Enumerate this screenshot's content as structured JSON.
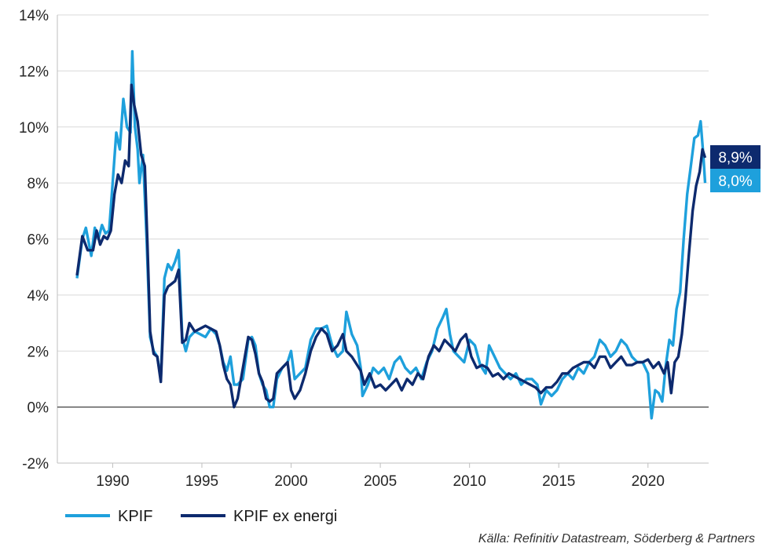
{
  "chart_data": {
    "type": "line",
    "title": "",
    "xlabel": "",
    "ylabel": "",
    "ylim": [
      -2,
      14
    ],
    "xlim": [
      1986.9,
      2023.4
    ],
    "y_ticks": [
      "-2%",
      "0%",
      "2%",
      "4%",
      "6%",
      "8%",
      "10%",
      "12%",
      "14%"
    ],
    "y_tick_values": [
      -2,
      0,
      2,
      4,
      6,
      8,
      10,
      12,
      14
    ],
    "x_ticks": [
      "1990",
      "1995",
      "2000",
      "2005",
      "2010",
      "2015",
      "2020"
    ],
    "x_tick_values": [
      1990,
      1995,
      2000,
      2005,
      2010,
      2015,
      2020
    ],
    "grid": "horizontal",
    "legend_position": "bottom-left",
    "series": [
      {
        "name": "KPIF",
        "color": "#1ea0dc",
        "end_label": "8,0%",
        "end_value": 8.0,
        "points": [
          [
            1988.0,
            4.6
          ],
          [
            1988.3,
            6.0
          ],
          [
            1988.5,
            6.4
          ],
          [
            1988.8,
            5.4
          ],
          [
            1989.0,
            6.4
          ],
          [
            1989.2,
            6.0
          ],
          [
            1989.4,
            6.5
          ],
          [
            1989.6,
            6.2
          ],
          [
            1989.8,
            6.3
          ],
          [
            1990.0,
            8.0
          ],
          [
            1990.2,
            9.8
          ],
          [
            1990.4,
            9.2
          ],
          [
            1990.6,
            11.0
          ],
          [
            1990.8,
            10.0
          ],
          [
            1991.0,
            9.8
          ],
          [
            1991.1,
            12.7
          ],
          [
            1991.25,
            10.0
          ],
          [
            1991.4,
            9.2
          ],
          [
            1991.5,
            8.0
          ],
          [
            1991.7,
            9.0
          ],
          [
            1991.9,
            6.0
          ],
          [
            1992.1,
            2.5
          ],
          [
            1992.3,
            2.0
          ],
          [
            1992.5,
            1.8
          ],
          [
            1992.7,
            1.0
          ],
          [
            1992.9,
            4.6
          ],
          [
            1993.1,
            5.1
          ],
          [
            1993.3,
            4.9
          ],
          [
            1993.5,
            5.2
          ],
          [
            1993.7,
            5.6
          ],
          [
            1993.9,
            2.5
          ],
          [
            1994.1,
            2.0
          ],
          [
            1994.3,
            2.5
          ],
          [
            1994.6,
            2.7
          ],
          [
            1994.9,
            2.6
          ],
          [
            1995.2,
            2.5
          ],
          [
            1995.5,
            2.8
          ],
          [
            1995.8,
            2.6
          ],
          [
            1996.0,
            2.2
          ],
          [
            1996.2,
            1.6
          ],
          [
            1996.4,
            1.3
          ],
          [
            1996.6,
            1.8
          ],
          [
            1996.8,
            0.8
          ],
          [
            1997.0,
            0.8
          ],
          [
            1997.3,
            1.0
          ],
          [
            1997.6,
            2.4
          ],
          [
            1997.8,
            2.5
          ],
          [
            1998.0,
            2.2
          ],
          [
            1998.2,
            1.2
          ],
          [
            1998.4,
            0.8
          ],
          [
            1998.6,
            0.6
          ],
          [
            1998.8,
            0.0
          ],
          [
            1999.0,
            0.0
          ],
          [
            1999.2,
            1.0
          ],
          [
            1999.5,
            1.4
          ],
          [
            1999.8,
            1.6
          ],
          [
            2000.0,
            2.0
          ],
          [
            2000.2,
            1.0
          ],
          [
            2000.5,
            1.2
          ],
          [
            2000.8,
            1.4
          ],
          [
            2001.1,
            2.4
          ],
          [
            2001.4,
            2.8
          ],
          [
            2001.7,
            2.8
          ],
          [
            2002.0,
            2.9
          ],
          [
            2002.3,
            2.2
          ],
          [
            2002.6,
            1.8
          ],
          [
            2002.9,
            2.0
          ],
          [
            2003.1,
            3.4
          ],
          [
            2003.4,
            2.6
          ],
          [
            2003.7,
            2.2
          ],
          [
            2003.9,
            1.4
          ],
          [
            2004.0,
            0.4
          ],
          [
            2004.3,
            0.8
          ],
          [
            2004.6,
            1.4
          ],
          [
            2004.9,
            1.2
          ],
          [
            2005.2,
            1.4
          ],
          [
            2005.5,
            1.0
          ],
          [
            2005.8,
            1.6
          ],
          [
            2006.1,
            1.8
          ],
          [
            2006.4,
            1.4
          ],
          [
            2006.7,
            1.2
          ],
          [
            2007.0,
            1.4
          ],
          [
            2007.3,
            1.0
          ],
          [
            2007.6,
            1.6
          ],
          [
            2007.9,
            2.0
          ],
          [
            2008.2,
            2.8
          ],
          [
            2008.5,
            3.2
          ],
          [
            2008.7,
            3.5
          ],
          [
            2008.9,
            2.6
          ],
          [
            2009.1,
            2.0
          ],
          [
            2009.4,
            1.8
          ],
          [
            2009.7,
            1.6
          ],
          [
            2010.0,
            2.4
          ],
          [
            2010.3,
            2.2
          ],
          [
            2010.6,
            1.5
          ],
          [
            2010.9,
            1.2
          ],
          [
            2011.1,
            2.2
          ],
          [
            2011.4,
            1.8
          ],
          [
            2011.7,
            1.4
          ],
          [
            2012.0,
            1.2
          ],
          [
            2012.3,
            1.0
          ],
          [
            2012.6,
            1.2
          ],
          [
            2012.9,
            0.8
          ],
          [
            2013.2,
            1.0
          ],
          [
            2013.5,
            1.0
          ],
          [
            2013.8,
            0.8
          ],
          [
            2014.0,
            0.1
          ],
          [
            2014.3,
            0.6
          ],
          [
            2014.6,
            0.4
          ],
          [
            2014.9,
            0.6
          ],
          [
            2015.2,
            1.0
          ],
          [
            2015.5,
            1.2
          ],
          [
            2015.8,
            1.0
          ],
          [
            2016.1,
            1.4
          ],
          [
            2016.4,
            1.2
          ],
          [
            2016.7,
            1.6
          ],
          [
            2017.0,
            1.8
          ],
          [
            2017.3,
            2.4
          ],
          [
            2017.6,
            2.2
          ],
          [
            2017.9,
            1.8
          ],
          [
            2018.2,
            2.0
          ],
          [
            2018.5,
            2.4
          ],
          [
            2018.8,
            2.2
          ],
          [
            2019.1,
            1.8
          ],
          [
            2019.4,
            1.6
          ],
          [
            2019.7,
            1.6
          ],
          [
            2020.0,
            1.2
          ],
          [
            2020.2,
            -0.4
          ],
          [
            2020.4,
            0.6
          ],
          [
            2020.6,
            0.5
          ],
          [
            2020.8,
            0.2
          ],
          [
            2021.0,
            1.5
          ],
          [
            2021.2,
            2.4
          ],
          [
            2021.4,
            2.2
          ],
          [
            2021.6,
            3.5
          ],
          [
            2021.8,
            4.1
          ],
          [
            2022.0,
            6.0
          ],
          [
            2022.2,
            7.6
          ],
          [
            2022.4,
            8.6
          ],
          [
            2022.6,
            9.6
          ],
          [
            2022.8,
            9.7
          ],
          [
            2022.95,
            10.2
          ],
          [
            2023.1,
            9.0
          ],
          [
            2023.2,
            8.0
          ]
        ]
      },
      {
        "name": "KPIF ex energi",
        "color": "#0d2a6e",
        "end_label": "8,9%",
        "end_value": 8.9,
        "points": [
          [
            1988.0,
            4.7
          ],
          [
            1988.3,
            6.1
          ],
          [
            1988.6,
            5.6
          ],
          [
            1988.9,
            5.6
          ],
          [
            1989.1,
            6.3
          ],
          [
            1989.3,
            5.8
          ],
          [
            1989.5,
            6.1
          ],
          [
            1989.7,
            6.0
          ],
          [
            1989.9,
            6.3
          ],
          [
            1990.1,
            7.6
          ],
          [
            1990.3,
            8.3
          ],
          [
            1990.5,
            8.0
          ],
          [
            1990.7,
            8.8
          ],
          [
            1990.9,
            8.6
          ],
          [
            1991.05,
            11.5
          ],
          [
            1991.2,
            10.8
          ],
          [
            1991.4,
            10.2
          ],
          [
            1991.6,
            9.0
          ],
          [
            1991.8,
            8.6
          ],
          [
            1991.95,
            5.8
          ],
          [
            1992.1,
            2.7
          ],
          [
            1992.3,
            1.9
          ],
          [
            1992.5,
            1.8
          ],
          [
            1992.7,
            0.9
          ],
          [
            1992.9,
            4.0
          ],
          [
            1993.1,
            4.3
          ],
          [
            1993.3,
            4.4
          ],
          [
            1993.5,
            4.5
          ],
          [
            1993.7,
            4.9
          ],
          [
            1993.9,
            2.3
          ],
          [
            1994.1,
            2.4
          ],
          [
            1994.3,
            3.0
          ],
          [
            1994.6,
            2.7
          ],
          [
            1994.9,
            2.8
          ],
          [
            1995.2,
            2.9
          ],
          [
            1995.5,
            2.8
          ],
          [
            1995.8,
            2.7
          ],
          [
            1996.0,
            2.2
          ],
          [
            1996.2,
            1.5
          ],
          [
            1996.4,
            1.0
          ],
          [
            1996.6,
            0.8
          ],
          [
            1996.8,
            0.0
          ],
          [
            1997.0,
            0.3
          ],
          [
            1997.3,
            1.4
          ],
          [
            1997.6,
            2.5
          ],
          [
            1997.8,
            2.4
          ],
          [
            1998.0,
            1.9
          ],
          [
            1998.2,
            1.2
          ],
          [
            1998.4,
            0.9
          ],
          [
            1998.6,
            0.3
          ],
          [
            1998.8,
            0.2
          ],
          [
            1999.0,
            0.3
          ],
          [
            1999.2,
            1.2
          ],
          [
            1999.5,
            1.4
          ],
          [
            1999.8,
            1.6
          ],
          [
            2000.0,
            0.6
          ],
          [
            2000.2,
            0.3
          ],
          [
            2000.5,
            0.6
          ],
          [
            2000.8,
            1.2
          ],
          [
            2001.1,
            2.0
          ],
          [
            2001.4,
            2.5
          ],
          [
            2001.7,
            2.8
          ],
          [
            2002.0,
            2.6
          ],
          [
            2002.3,
            2.0
          ],
          [
            2002.6,
            2.2
          ],
          [
            2002.9,
            2.6
          ],
          [
            2003.1,
            2.0
          ],
          [
            2003.4,
            1.8
          ],
          [
            2003.7,
            1.5
          ],
          [
            2003.9,
            1.3
          ],
          [
            2004.1,
            0.8
          ],
          [
            2004.4,
            1.2
          ],
          [
            2004.7,
            0.7
          ],
          [
            2005.0,
            0.8
          ],
          [
            2005.3,
            0.6
          ],
          [
            2005.6,
            0.8
          ],
          [
            2005.9,
            1.0
          ],
          [
            2006.2,
            0.6
          ],
          [
            2006.5,
            1.0
          ],
          [
            2006.8,
            0.8
          ],
          [
            2007.1,
            1.2
          ],
          [
            2007.4,
            1.0
          ],
          [
            2007.7,
            1.8
          ],
          [
            2008.0,
            2.2
          ],
          [
            2008.3,
            2.0
          ],
          [
            2008.6,
            2.4
          ],
          [
            2008.9,
            2.2
          ],
          [
            2009.2,
            2.0
          ],
          [
            2009.5,
            2.4
          ],
          [
            2009.8,
            2.6
          ],
          [
            2010.1,
            1.8
          ],
          [
            2010.4,
            1.4
          ],
          [
            2010.7,
            1.5
          ],
          [
            2011.0,
            1.4
          ],
          [
            2011.3,
            1.1
          ],
          [
            2011.6,
            1.2
          ],
          [
            2011.9,
            1.0
          ],
          [
            2012.2,
            1.2
          ],
          [
            2012.5,
            1.1
          ],
          [
            2012.8,
            1.0
          ],
          [
            2013.1,
            0.9
          ],
          [
            2013.4,
            0.8
          ],
          [
            2013.7,
            0.7
          ],
          [
            2014.0,
            0.5
          ],
          [
            2014.3,
            0.7
          ],
          [
            2014.6,
            0.7
          ],
          [
            2014.9,
            0.9
          ],
          [
            2015.2,
            1.2
          ],
          [
            2015.5,
            1.2
          ],
          [
            2015.8,
            1.4
          ],
          [
            2016.1,
            1.5
          ],
          [
            2016.4,
            1.6
          ],
          [
            2016.7,
            1.6
          ],
          [
            2017.0,
            1.4
          ],
          [
            2017.3,
            1.8
          ],
          [
            2017.6,
            1.8
          ],
          [
            2017.9,
            1.4
          ],
          [
            2018.2,
            1.6
          ],
          [
            2018.5,
            1.8
          ],
          [
            2018.8,
            1.5
          ],
          [
            2019.1,
            1.5
          ],
          [
            2019.4,
            1.6
          ],
          [
            2019.7,
            1.6
          ],
          [
            2020.0,
            1.7
          ],
          [
            2020.3,
            1.4
          ],
          [
            2020.6,
            1.6
          ],
          [
            2020.9,
            1.2
          ],
          [
            2021.1,
            1.6
          ],
          [
            2021.3,
            0.5
          ],
          [
            2021.5,
            1.6
          ],
          [
            2021.7,
            1.8
          ],
          [
            2021.9,
            2.6
          ],
          [
            2022.1,
            3.9
          ],
          [
            2022.3,
            5.5
          ],
          [
            2022.5,
            7.0
          ],
          [
            2022.7,
            7.9
          ],
          [
            2022.9,
            8.4
          ],
          [
            2023.05,
            9.2
          ],
          [
            2023.2,
            8.9
          ]
        ]
      }
    ]
  },
  "legend": {
    "items": [
      {
        "label": "KPIF",
        "color": "#1ea0dc"
      },
      {
        "label": "KPIF ex energi",
        "color": "#0d2a6e"
      }
    ]
  },
  "source_text": "Källa: Refinitiv Datastream, Söderberg & Partners"
}
